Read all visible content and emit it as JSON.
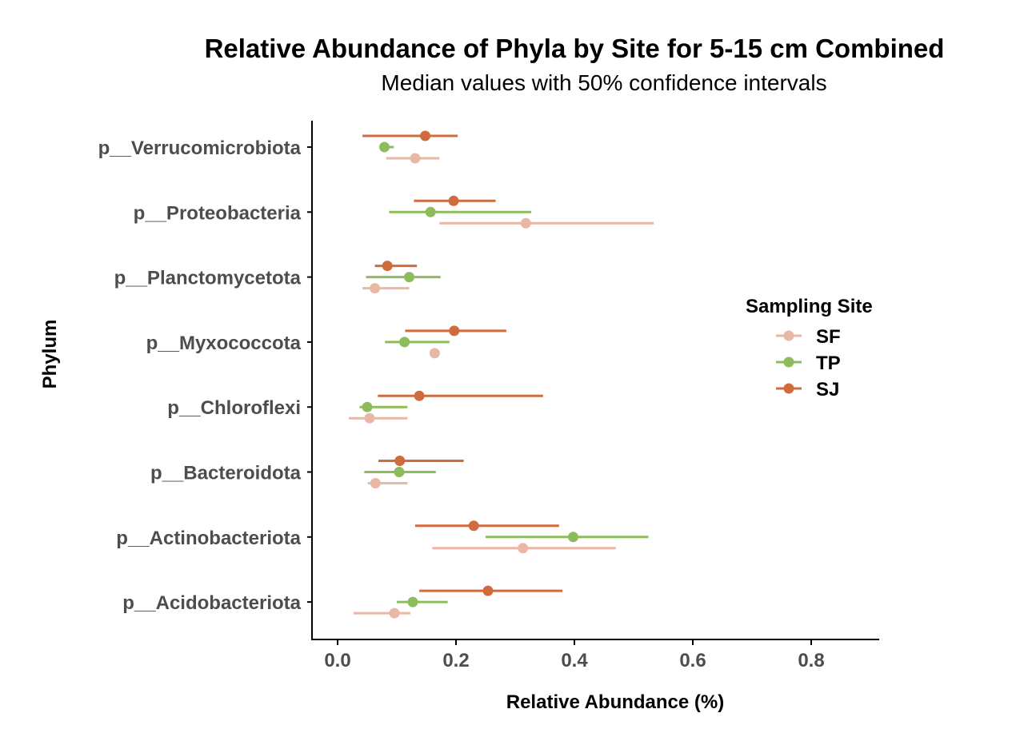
{
  "chart_data": {
    "type": "scatter",
    "subtype": "point-range",
    "title": "Relative Abundance of Phyla by Site for 5-15 cm Combined",
    "subtitle": "Median values with 50% confidence intervals",
    "xlabel": "Relative Abundance (%)",
    "ylabel": "Phylum",
    "xlim": [
      -0.045,
      0.91
    ],
    "xticks": [
      0.0,
      0.2,
      0.4,
      0.6,
      0.8
    ],
    "xtick_labels": [
      "0.0",
      "0.2",
      "0.4",
      "0.6",
      "0.8"
    ],
    "categories": [
      "p__Verrucomicrobiota",
      "p__Proteobacteria",
      "p__Planctomycetota",
      "p__Myxococcota",
      "p__Chloroflexi",
      "p__Bacteroidota",
      "p__Actinobacteriota",
      "p__Acidobacteriota"
    ],
    "grid": false,
    "legend": {
      "title": "Sampling Site",
      "position": "right"
    },
    "series": [
      {
        "name": "SF",
        "color": "#e9b7a6",
        "points": [
          {
            "median": 0.131,
            "low": 0.082,
            "high": 0.172
          },
          {
            "median": 0.318,
            "low": 0.172,
            "high": 0.534
          },
          {
            "median": 0.063,
            "low": 0.042,
            "high": 0.121
          },
          {
            "median": 0.164,
            "low": 0.164,
            "high": 0.164
          },
          {
            "median": 0.054,
            "low": 0.019,
            "high": 0.118
          },
          {
            "median": 0.064,
            "low": 0.051,
            "high": 0.118
          },
          {
            "median": 0.313,
            "low": 0.16,
            "high": 0.47
          },
          {
            "median": 0.096,
            "low": 0.027,
            "high": 0.123
          }
        ]
      },
      {
        "name": "TP",
        "color": "#8ebc5d",
        "points": [
          {
            "median": 0.079,
            "low": 0.079,
            "high": 0.095
          },
          {
            "median": 0.157,
            "low": 0.087,
            "high": 0.327
          },
          {
            "median": 0.121,
            "low": 0.048,
            "high": 0.174
          },
          {
            "median": 0.113,
            "low": 0.08,
            "high": 0.189
          },
          {
            "median": 0.05,
            "low": 0.037,
            "high": 0.118
          },
          {
            "median": 0.104,
            "low": 0.045,
            "high": 0.166
          },
          {
            "median": 0.398,
            "low": 0.25,
            "high": 0.525
          },
          {
            "median": 0.127,
            "low": 0.1,
            "high": 0.186
          }
        ]
      },
      {
        "name": "SJ",
        "color": "#d06b3e",
        "points": [
          {
            "median": 0.148,
            "low": 0.042,
            "high": 0.203
          },
          {
            "median": 0.196,
            "low": 0.129,
            "high": 0.267
          },
          {
            "median": 0.084,
            "low": 0.063,
            "high": 0.134
          },
          {
            "median": 0.197,
            "low": 0.114,
            "high": 0.285
          },
          {
            "median": 0.138,
            "low": 0.068,
            "high": 0.347
          },
          {
            "median": 0.105,
            "low": 0.069,
            "high": 0.213
          },
          {
            "median": 0.23,
            "low": 0.131,
            "high": 0.374
          },
          {
            "median": 0.254,
            "low": 0.138,
            "high": 0.38
          }
        ]
      }
    ]
  }
}
